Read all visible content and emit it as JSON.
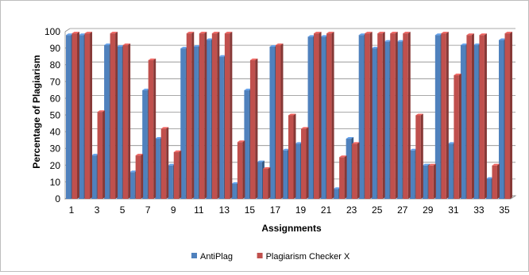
{
  "chart_data": {
    "type": "bar",
    "xlabel": "Assignments",
    "ylabel": "Percentage of Plagiarism",
    "ylim": [
      0,
      100
    ],
    "yticks": [
      0,
      10,
      20,
      30,
      40,
      50,
      60,
      70,
      80,
      90,
      100
    ],
    "grid": "horizontal",
    "legend_position": "bottom",
    "categories": [
      "1",
      "2",
      "3",
      "4",
      "5",
      "6",
      "7",
      "8",
      "9",
      "10",
      "11",
      "12",
      "13",
      "14",
      "15",
      "16",
      "17",
      "18",
      "19",
      "20",
      "21",
      "22",
      "23",
      "24",
      "25",
      "26",
      "27",
      "28",
      "29",
      "30",
      "31",
      "32",
      "33",
      "34",
      "35"
    ],
    "xtick_labels": [
      "1",
      "3",
      "5",
      "7",
      "9",
      "11",
      "13",
      "15",
      "17",
      "19",
      "21",
      "23",
      "25",
      "27",
      "29",
      "31",
      "33",
      "35"
    ],
    "series": [
      {
        "name": "AntiPlag",
        "color": "#4f81bd",
        "values": [
          98,
          98,
          26,
          92,
          91,
          16,
          65,
          36,
          20,
          90,
          91,
          95,
          85,
          9,
          65,
          22,
          91,
          29,
          33,
          97,
          97,
          6,
          36,
          98,
          90,
          94,
          94,
          29,
          20,
          98,
          33,
          92,
          92,
          12,
          95
        ]
      },
      {
        "name": "Plagiarism Checker X",
        "color": "#c0504d",
        "values": [
          99,
          99,
          52,
          99,
          92,
          26,
          83,
          42,
          28,
          99,
          99,
          99,
          99,
          34,
          83,
          18,
          92,
          50,
          42,
          99,
          99,
          25,
          33,
          99,
          99,
          99,
          99,
          50,
          20,
          99,
          74,
          98,
          98,
          20,
          99
        ]
      }
    ]
  }
}
